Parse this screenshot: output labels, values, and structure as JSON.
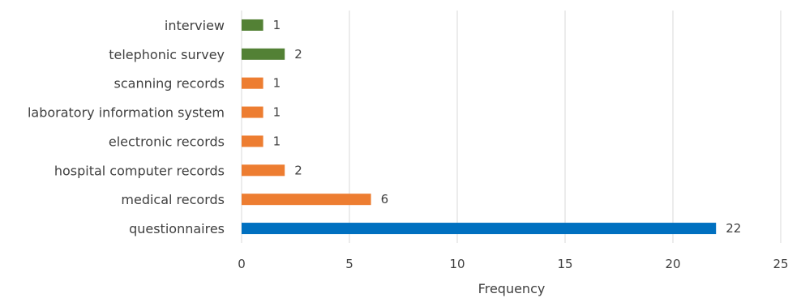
{
  "chart_data": {
    "type": "bar",
    "orientation": "horizontal",
    "categories": [
      "interview",
      "telephonic survey",
      "scanning records",
      "laboratory information system",
      "electronic records",
      "hospital computer records",
      "medical records",
      "questionnaires"
    ],
    "values": [
      1,
      2,
      1,
      1,
      1,
      2,
      6,
      22
    ],
    "bar_colors": [
      "#538135",
      "#538135",
      "#ED7D31",
      "#ED7D31",
      "#ED7D31",
      "#ED7D31",
      "#ED7D31",
      "#0070C0"
    ],
    "xlabel": "Frequency",
    "ylabel": "",
    "xlim": [
      0,
      25
    ],
    "xticks": [
      0,
      5,
      10,
      15,
      20,
      25
    ],
    "grid": "vertical",
    "legend": "none",
    "data_labels": true
  }
}
